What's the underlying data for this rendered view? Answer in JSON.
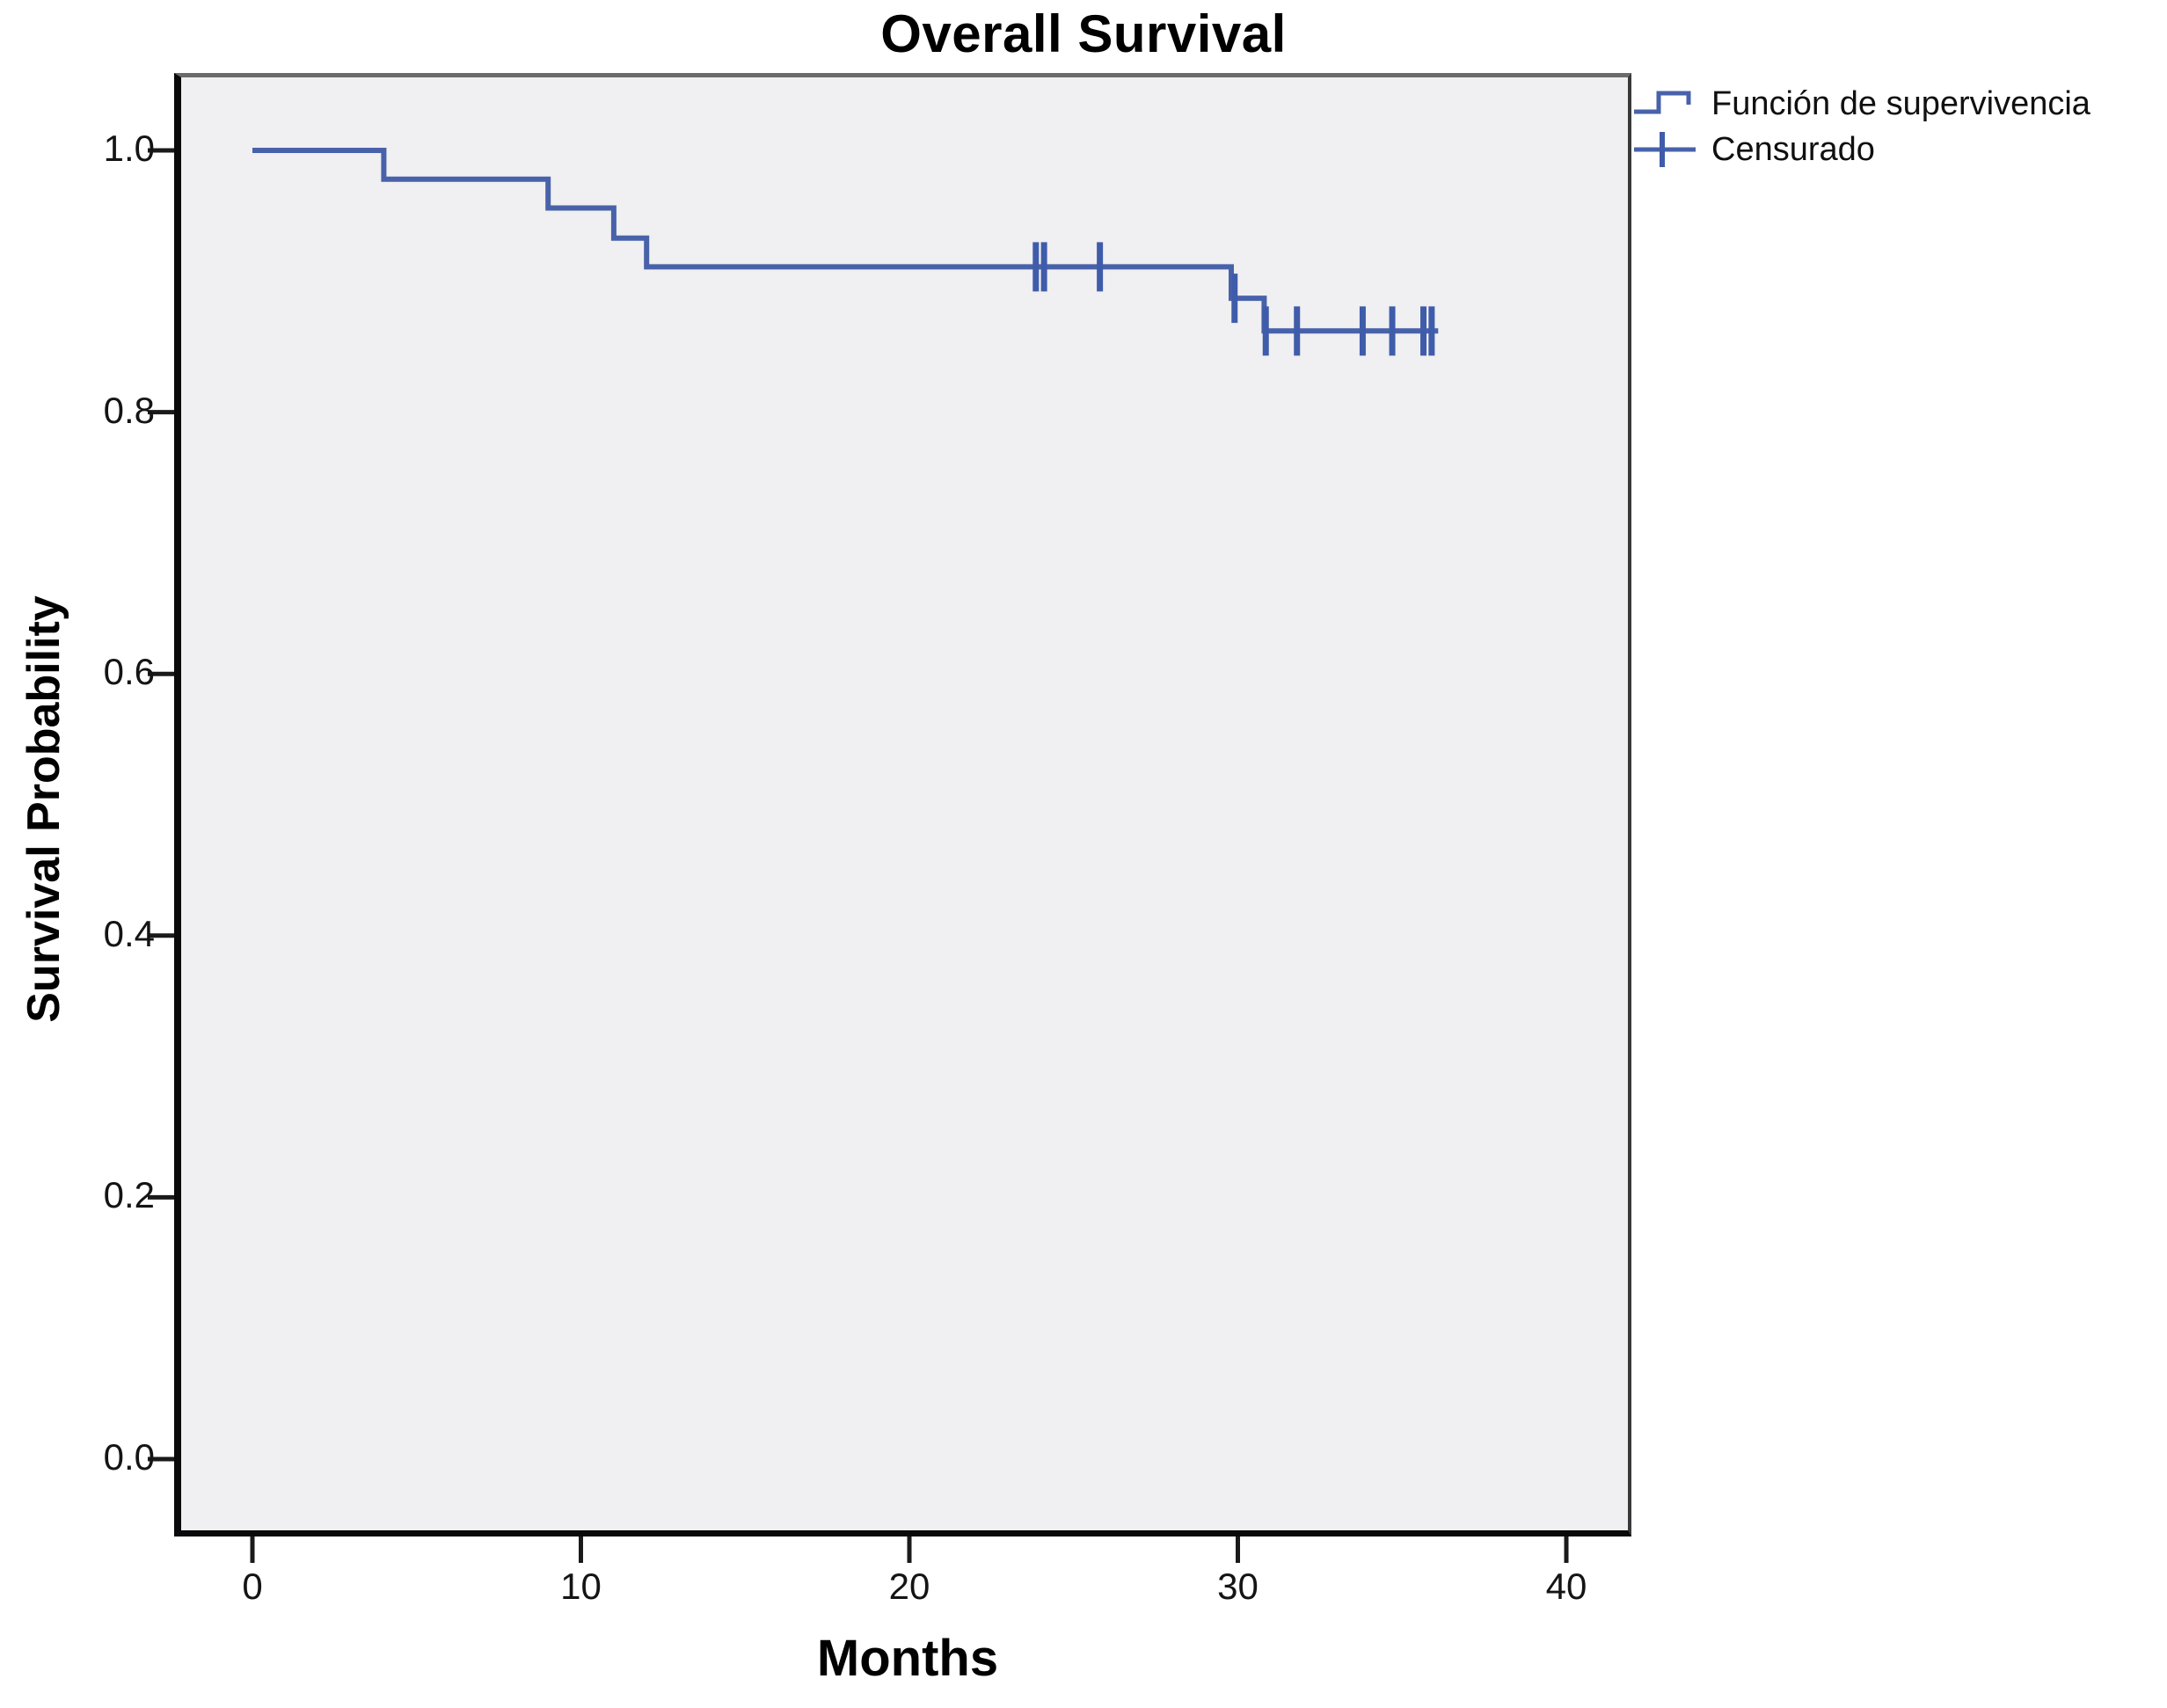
{
  "chart_data": {
    "type": "line",
    "subtype": "kaplan-meier-step",
    "title": "Overall Survival",
    "xlabel": "Months",
    "ylabel": "Survival Probability",
    "xticks": [
      0,
      10,
      20,
      30,
      40
    ],
    "yticks": [
      "0.0",
      "0.2",
      "0.4",
      "0.6",
      "0.8",
      "1.0"
    ],
    "xlim": [
      -2.2,
      42
    ],
    "ylim": [
      -0.06,
      1.06
    ],
    "grid": false,
    "legend_position": "top-right-outside",
    "plot_background": "#f0eff1",
    "series": [
      {
        "name": "Función de supervivencia",
        "type": "step",
        "color": "#4862aa",
        "points": [
          [
            0,
            1.0
          ],
          [
            4,
            1.0
          ],
          [
            4,
            0.978
          ],
          [
            9,
            0.978
          ],
          [
            9,
            0.956
          ],
          [
            11,
            0.956
          ],
          [
            11,
            0.933
          ],
          [
            12,
            0.933
          ],
          [
            12,
            0.911
          ],
          [
            29.8,
            0.911
          ],
          [
            29.8,
            0.887
          ],
          [
            30.8,
            0.887
          ],
          [
            30.8,
            0.862
          ],
          [
            36.1,
            0.862
          ]
        ]
      },
      {
        "name": "Censurado",
        "type": "censor-marks",
        "color": "#3f5cab",
        "points": [
          [
            23.85,
            0.911
          ],
          [
            24.1,
            0.911
          ],
          [
            25.8,
            0.911
          ],
          [
            29.9,
            0.887
          ],
          [
            30.85,
            0.862
          ],
          [
            31.8,
            0.862
          ],
          [
            33.8,
            0.862
          ],
          [
            34.7,
            0.862
          ],
          [
            35.65,
            0.862
          ],
          [
            35.9,
            0.862
          ]
        ]
      }
    ]
  },
  "legend": {
    "items": [
      {
        "label": "Función de supervivencia",
        "glyph": "step-line"
      },
      {
        "label": "Censurado",
        "glyph": "plus-cross"
      }
    ]
  },
  "colors": {
    "curve": "#4862aa",
    "censor": "#3f5cab",
    "axis": "#1a1a1a",
    "plot_bg": "#f0eff1"
  }
}
